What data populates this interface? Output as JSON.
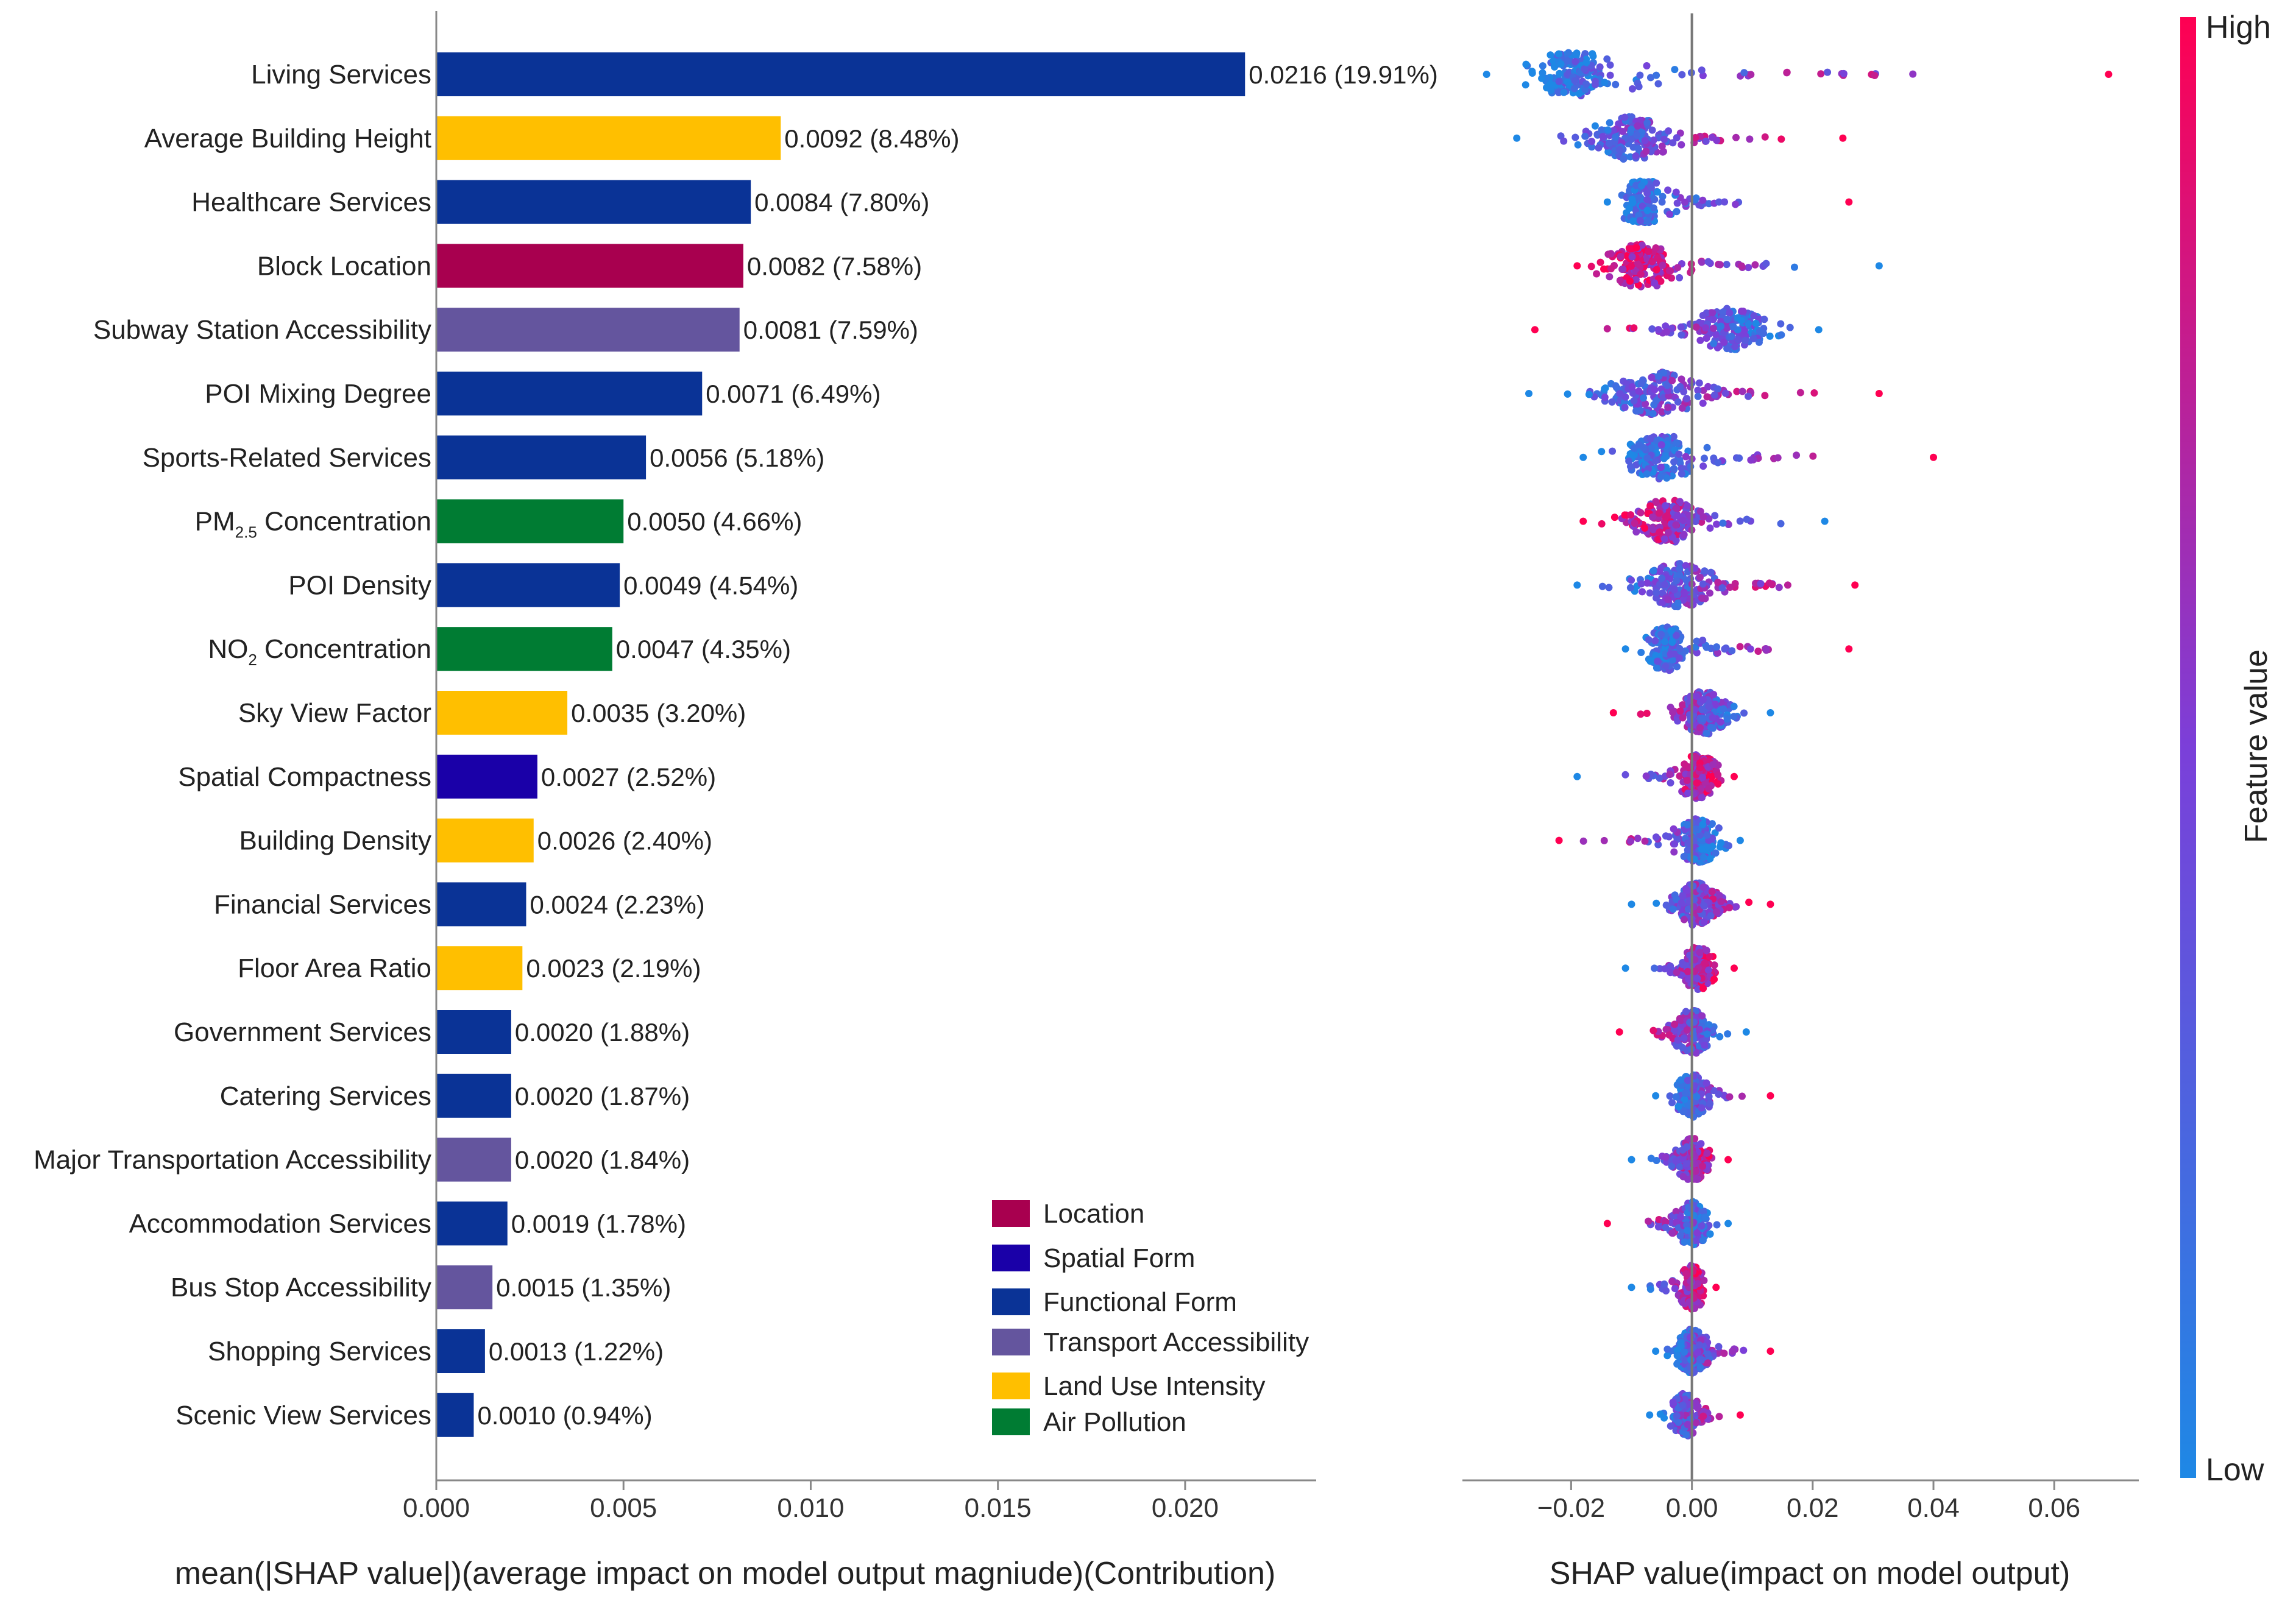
{
  "chart_data": [
    {
      "type": "bar",
      "orientation": "horizontal",
      "title": "",
      "xlabel": "mean(|SHAP value|)(average impact on model output magniude)(Contribution)",
      "xlim": [
        0,
        0.0235
      ],
      "xticks": [
        "0.000",
        "0.005",
        "0.010",
        "0.015",
        "0.020"
      ],
      "categories": [
        {
          "label": "Living Services",
          "value": 0.0216,
          "text": "0.0216 (19.91%)",
          "group": "functional"
        },
        {
          "label": "Average Building Height",
          "value": 0.0092,
          "text": "0.0092 (8.48%)",
          "group": "landuse"
        },
        {
          "label": "Healthcare Services",
          "value": 0.0084,
          "text": "0.0084 (7.80%)",
          "group": "functional"
        },
        {
          "label": "Block Location",
          "value": 0.0082,
          "text": "0.0082 (7.58%)",
          "group": "location"
        },
        {
          "label": "Subway Station Accessibility",
          "value": 0.0081,
          "text": "0.0081 (7.59%)",
          "group": "transport"
        },
        {
          "label": "POI Mixing Degree",
          "value": 0.0071,
          "text": "0.0071 (6.49%)",
          "group": "functional"
        },
        {
          "label": "Sports-Related Services",
          "value": 0.0056,
          "text": "0.0056 (5.18%)",
          "group": "functional"
        },
        {
          "label": "PM",
          "sub": "2.5",
          "tail": " Concentration",
          "value": 0.005,
          "text": "0.0050 (4.66%)",
          "group": "air"
        },
        {
          "label": "POI Density",
          "value": 0.0049,
          "text": "0.0049 (4.54%)",
          "group": "functional"
        },
        {
          "label": "NO",
          "sub": "2",
          "tail": " Concentration",
          "value": 0.0047,
          "text": "0.0047 (4.35%)",
          "group": "air"
        },
        {
          "label": "Sky View Factor",
          "value": 0.0035,
          "text": "0.0035 (3.20%)",
          "group": "landuse"
        },
        {
          "label": "Spatial Compactness",
          "value": 0.0027,
          "text": "0.0027 (2.52%)",
          "group": "spatial"
        },
        {
          "label": "Building Density",
          "value": 0.0026,
          "text": "0.0026 (2.40%)",
          "group": "landuse"
        },
        {
          "label": "Financial Services",
          "value": 0.0024,
          "text": "0.0024 (2.23%)",
          "group": "functional"
        },
        {
          "label": "Floor Area Ratio",
          "value": 0.0023,
          "text": "0.0023 (2.19%)",
          "group": "landuse"
        },
        {
          "label": "Government Services",
          "value": 0.002,
          "text": "0.0020 (1.88%)",
          "group": "functional"
        },
        {
          "label": "Catering Services",
          "value": 0.002,
          "text": "0.0020 (1.87%)",
          "group": "functional"
        },
        {
          "label": "Major Transportation Accessibility",
          "value": 0.002,
          "text": "0.0020 (1.84%)",
          "group": "transport"
        },
        {
          "label": "Accommodation Services",
          "value": 0.0019,
          "text": "0.0019 (1.78%)",
          "group": "functional"
        },
        {
          "label": "Bus Stop Accessibility",
          "value": 0.0015,
          "text": "0.0015 (1.35%)",
          "group": "transport"
        },
        {
          "label": "Shopping Services",
          "value": 0.0013,
          "text": "0.0013 (1.22%)",
          "group": "functional"
        },
        {
          "label": "Scenic View Services",
          "value": 0.001,
          "text": "0.0010 (0.94%)",
          "group": "functional"
        }
      ],
      "legend": [
        {
          "key": "location",
          "label": "Location",
          "color": "#A8004F"
        },
        {
          "key": "spatial",
          "label": "Spatial Form",
          "color": "#1A00A8"
        },
        {
          "key": "functional",
          "label": "Functional Form",
          "color": "#0A3396"
        },
        {
          "key": "transport",
          "label": "Transport Accessibility",
          "color": "#64559E"
        },
        {
          "key": "landuse",
          "label": "Land Use Intensity",
          "color": "#FFBF00"
        },
        {
          "key": "air",
          "label": "Air Pollution",
          "color": "#007C33"
        }
      ]
    },
    {
      "type": "scatter",
      "subtype": "beeswarm",
      "xlabel": "SHAP value(impact on model output)",
      "xlim": [
        -0.038,
        0.074
      ],
      "xticks": [
        -0.02,
        0.0,
        0.02,
        0.04,
        0.06
      ],
      "xtick_labels": [
        "−0.02",
        "0.00",
        "0.02",
        "0.04",
        "0.06"
      ],
      "colorbar": {
        "label": "Feature value",
        "high": "High",
        "low": "Low",
        "color_low": "#1E88E5",
        "color_high": "#FF0052"
      },
      "rows": [
        {
          "min": -0.034,
          "max": 0.069,
          "center": -0.019,
          "hi_side": "right"
        },
        {
          "min": -0.029,
          "max": 0.025,
          "center": -0.01,
          "hi_side": "right"
        },
        {
          "min": -0.014,
          "max": 0.026,
          "center": -0.008,
          "hi_side": "right"
        },
        {
          "min": -0.019,
          "max": 0.031,
          "center": -0.008,
          "hi_side": "left"
        },
        {
          "min": -0.026,
          "max": 0.021,
          "center": 0.006,
          "hi_side": "left"
        },
        {
          "min": -0.027,
          "max": 0.031,
          "center": -0.006,
          "hi_side": "right"
        },
        {
          "min": -0.018,
          "max": 0.04,
          "center": -0.005,
          "hi_side": "right"
        },
        {
          "min": -0.018,
          "max": 0.022,
          "center": -0.004,
          "hi_side": "left"
        },
        {
          "min": -0.019,
          "max": 0.027,
          "center": -0.002,
          "hi_side": "right"
        },
        {
          "min": -0.011,
          "max": 0.026,
          "center": -0.004,
          "hi_side": "right"
        },
        {
          "min": -0.013,
          "max": 0.013,
          "center": 0.002,
          "hi_side": "left"
        },
        {
          "min": -0.019,
          "max": 0.007,
          "center": 0.001,
          "hi_side": "right"
        },
        {
          "min": -0.022,
          "max": 0.008,
          "center": 0.001,
          "hi_side": "left"
        },
        {
          "min": -0.01,
          "max": 0.013,
          "center": 0.001,
          "hi_side": "right"
        },
        {
          "min": -0.011,
          "max": 0.007,
          "center": 0.001,
          "hi_side": "right"
        },
        {
          "min": -0.012,
          "max": 0.009,
          "center": 0.0,
          "hi_side": "left"
        },
        {
          "min": -0.006,
          "max": 0.013,
          "center": 0.0,
          "hi_side": "right"
        },
        {
          "min": -0.01,
          "max": 0.006,
          "center": 0.0,
          "hi_side": "right"
        },
        {
          "min": -0.014,
          "max": 0.006,
          "center": 0.0,
          "hi_side": "left"
        },
        {
          "min": -0.01,
          "max": 0.004,
          "center": 0.0,
          "hi_side": "right"
        },
        {
          "min": -0.006,
          "max": 0.013,
          "center": 0.0,
          "hi_side": "right"
        },
        {
          "min": -0.007,
          "max": 0.008,
          "center": -0.001,
          "hi_side": "right"
        }
      ]
    }
  ]
}
